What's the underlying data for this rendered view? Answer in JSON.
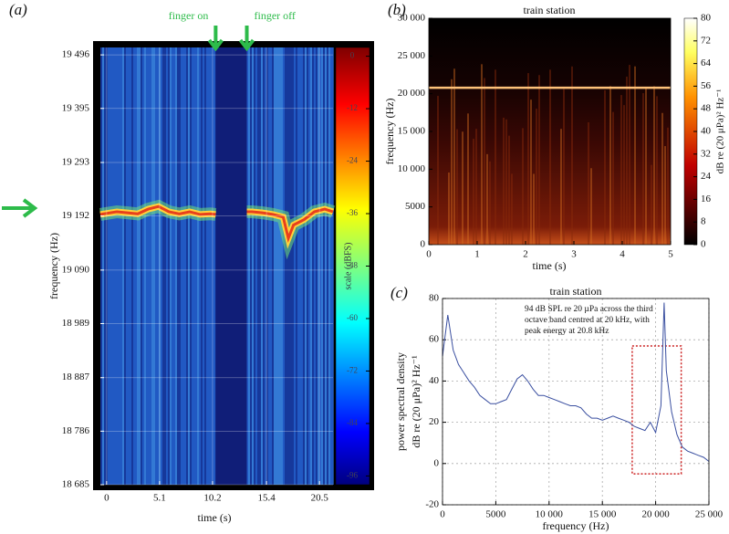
{
  "chart_data": [
    {
      "type": "spectrogram",
      "panel": "(a)",
      "xlabel": "time (s)",
      "ylabel": "frequency (Hz)",
      "grid": true,
      "xlim": [
        -0.6,
        21.8
      ],
      "xticks": [
        0,
        5.1,
        10.2,
        15.4,
        20.5
      ],
      "ylim": [
        18685,
        19510
      ],
      "yticks": [
        {
          "value": 18685,
          "label": "18 685"
        },
        {
          "value": 18786,
          "label": "18 786"
        },
        {
          "value": 18887,
          "label": "18 887"
        },
        {
          "value": 18989,
          "label": "18 989"
        },
        {
          "value": 19090,
          "label": "19 090"
        },
        {
          "value": 19192,
          "label": "19 192"
        },
        {
          "value": 19293,
          "label": "19 293"
        },
        {
          "value": 19395,
          "label": "19 395"
        },
        {
          "value": 19496,
          "label": "19 496"
        }
      ],
      "colorbar": {
        "label": "scale (dBFS)",
        "colormap": "jet",
        "lim": [
          -98,
          2
        ],
        "ticks": [
          0,
          -12,
          -24,
          -36,
          -48,
          -60,
          -72,
          -84,
          -96
        ]
      },
      "events": [
        {
          "label": "finger on",
          "x": 10.5
        },
        {
          "label": "finger off",
          "x": 13.5
        }
      ],
      "tone": {
        "color": "#ffd23c",
        "x": [
          -0.6,
          1,
          2,
          3,
          4,
          5,
          6,
          7,
          8,
          9,
          10,
          10.5,
          11,
          12,
          13,
          13.5,
          14,
          15,
          16,
          17,
          17.5,
          18,
          19,
          20,
          21,
          21.8
        ],
        "y": [
          19195,
          19200,
          19198,
          19196,
          19205,
          19210,
          19200,
          19196,
          19200,
          19195,
          19196,
          19195,
          null,
          null,
          null,
          19200,
          19200,
          19198,
          19195,
          19190,
          19150,
          19175,
          19185,
          19200,
          19205,
          19200
        ]
      }
    },
    {
      "type": "spectrogram",
      "panel": "(b)",
      "title": "train station",
      "xlabel": "time (s)",
      "ylabel": "frequency (Hz)",
      "grid": false,
      "xlim": [
        0,
        5
      ],
      "xticks": [
        0,
        1,
        2,
        3,
        4,
        5
      ],
      "ylim": [
        0,
        30000
      ],
      "yticks": [
        0,
        5000,
        {
          "value": 10000,
          "label": "10 000"
        },
        {
          "value": 15000,
          "label": "15 000"
        },
        {
          "value": 20000,
          "label": "20 000"
        },
        {
          "value": 25000,
          "label": "25 000"
        },
        {
          "value": 30000,
          "label": "30 000"
        }
      ],
      "colorbar": {
        "label": "dB re (20 μPa)² Hz⁻¹",
        "colormap": "hot",
        "lim": [
          0,
          80
        ],
        "ticks": [
          0,
          8,
          16,
          24,
          32,
          40,
          48,
          56,
          64,
          72,
          80
        ]
      },
      "tone": {
        "color": "#ffc27a",
        "x": [
          0,
          5
        ],
        "y": [
          20800,
          20800
        ]
      }
    },
    {
      "type": "line",
      "panel": "(c)",
      "title": "train station",
      "xlabel": "frequency (Hz)",
      "ylabel": [
        "power spectral density",
        "dB re (20 μPa)² Hz⁻¹"
      ],
      "annotation": [
        "94 dB SPL re 20  µPa across the third",
        "octave band centred at 20 kHz, with",
        "peak energy at 20.8 kHz"
      ],
      "grid": true,
      "xlim": [
        0,
        25000
      ],
      "xticks": [
        0,
        5000,
        {
          "value": 10000,
          "label": "10 000"
        },
        {
          "value": 15000,
          "label": "15 000"
        },
        {
          "value": 20000,
          "label": "20 000"
        },
        {
          "value": 25000,
          "label": "25 000"
        }
      ],
      "ylim": [
        -20,
        80
      ],
      "yticks": [
        -20,
        0,
        20,
        40,
        60,
        80
      ],
      "x": [
        0,
        500,
        1000,
        1500,
        2000,
        2500,
        3000,
        3500,
        4000,
        4500,
        5000,
        5500,
        6000,
        6500,
        7000,
        7500,
        8000,
        8500,
        9000,
        9500,
        10000,
        10500,
        11000,
        11500,
        12000,
        12500,
        13000,
        13500,
        14000,
        14500,
        15000,
        15500,
        16000,
        16500,
        17000,
        17500,
        18000,
        18500,
        19000,
        19500,
        20000,
        20500,
        20800,
        21000,
        21500,
        22000,
        22500,
        23000,
        23500,
        24000,
        24500,
        25000
      ],
      "series": [
        {
          "color": "#3a4fa0",
          "values": [
            52,
            72,
            55,
            48,
            44,
            40,
            37,
            33,
            31,
            29,
            29,
            30,
            31,
            36,
            41,
            43,
            40,
            36,
            33,
            33,
            32,
            31,
            30,
            29,
            28,
            28,
            27,
            24,
            22,
            22,
            21,
            22,
            23,
            22,
            21,
            20,
            18,
            17,
            16,
            20,
            15,
            28,
            78,
            45,
            25,
            14,
            8,
            6,
            5,
            4,
            3,
            1
          ]
        }
      ],
      "highlight": {
        "xlim": [
          17800,
          22400
        ],
        "ylim": [
          -5,
          57
        ],
        "color": "#cc2222"
      }
    }
  ]
}
